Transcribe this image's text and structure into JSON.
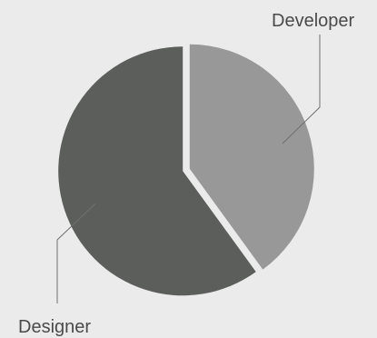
{
  "chart_data": {
    "type": "pie",
    "slices": [
      {
        "label": "Developer",
        "value": 40,
        "color": "#989898"
      },
      {
        "label": "Designer",
        "value": 60,
        "color": "#5c5e5c"
      }
    ]
  }
}
